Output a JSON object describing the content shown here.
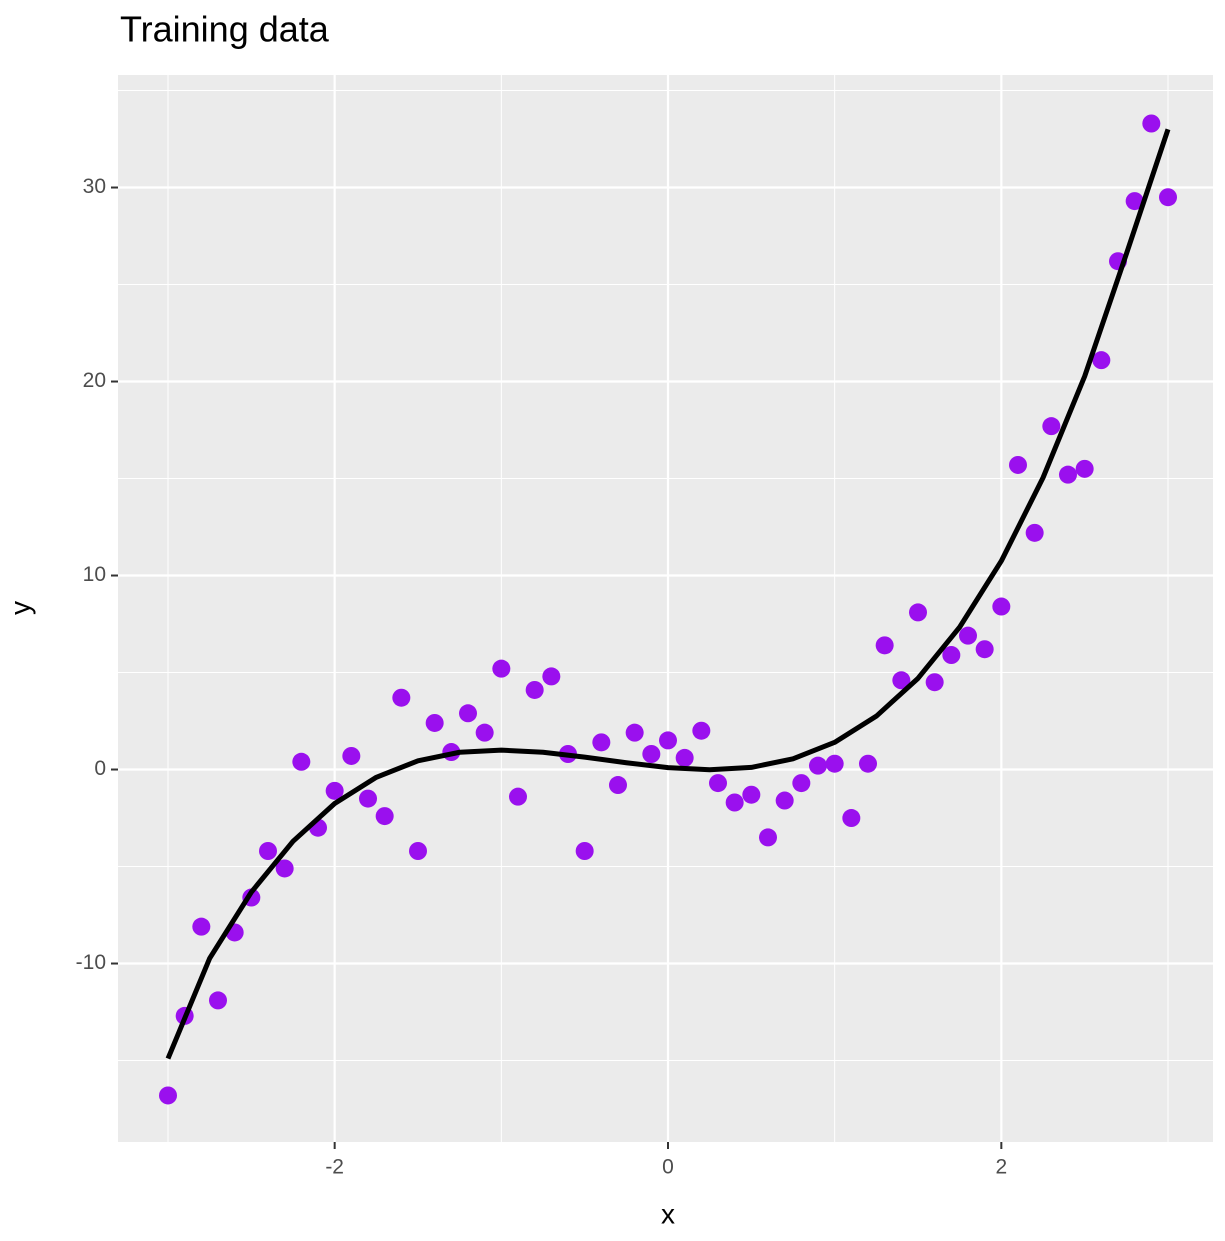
{
  "chart_data": {
    "type": "scatter",
    "title": "Training data",
    "xlabel": "x",
    "ylabel": "y",
    "xlim": [
      -3.3,
      3.27
    ],
    "ylim": [
      -19.2,
      35.8
    ],
    "xticks": [
      -2,
      0,
      2
    ],
    "yticks": [
      -10,
      0,
      10,
      20,
      30
    ],
    "x_minor_grid": [
      -3,
      -1,
      1,
      3
    ],
    "y_minor_grid": [
      -15,
      -5,
      5,
      15,
      25,
      35
    ],
    "grid": true,
    "points": {
      "color": "#9a10ee",
      "x": [
        -3,
        -2.9,
        -2.8,
        -2.7,
        -2.6,
        -2.5,
        -2.4,
        -2.3,
        -2.2,
        -2.1,
        -2,
        -1.9,
        -1.8,
        -1.7,
        -1.6,
        -1.5,
        -1.4,
        -1.3,
        -1.2,
        -1.1,
        -1,
        -0.9,
        -0.8,
        -0.7,
        -0.6,
        -0.5,
        -0.4,
        -0.3,
        -0.2,
        -0.1,
        0,
        0.1,
        0.2,
        0.3,
        0.4,
        0.5,
        0.6,
        0.7,
        0.8,
        0.9,
        1,
        1.1,
        1.2,
        1.3,
        1.4,
        1.5,
        1.6,
        1.7,
        1.8,
        1.9,
        2,
        2.1,
        2.2,
        2.3,
        2.4,
        2.5,
        2.6,
        2.7,
        2.8,
        2.9,
        3
      ],
      "y": [
        -16.8,
        -12.7,
        -8.1,
        -11.9,
        -8.4,
        -6.6,
        -4.2,
        -5.1,
        0.4,
        -3.0,
        -1.1,
        0.7,
        -1.5,
        -2.4,
        3.7,
        -4.2,
        2.4,
        0.9,
        2.9,
        1.9,
        5.2,
        -1.4,
        4.1,
        4.8,
        0.8,
        -4.2,
        1.4,
        -0.8,
        1.9,
        0.8,
        1.5,
        0.6,
        2.0,
        -0.7,
        -1.7,
        -1.3,
        -3.5,
        -1.6,
        -0.7,
        0.2,
        0.3,
        -2.5,
        0.3,
        6.4,
        4.6,
        8.1,
        4.5,
        5.9,
        6.9,
        6.2,
        8.4,
        15.7,
        12.2,
        17.7,
        15.2,
        15.5,
        21.1,
        26.2,
        29.3,
        33.3,
        29.5
      ]
    },
    "curve": {
      "color": "#000000",
      "x": [
        -3,
        -2.75,
        -2.5,
        -2.25,
        -2,
        -1.75,
        -1.5,
        -1.25,
        -1,
        -0.75,
        -0.5,
        -0.25,
        0,
        0.25,
        0.5,
        0.75,
        1,
        1.25,
        1.5,
        1.75,
        2,
        2.25,
        2.5,
        2.75,
        3
      ],
      "y": [
        -14.9,
        -9.73,
        -6.32,
        -3.7,
        -1.75,
        -0.4,
        0.45,
        0.89,
        1.0,
        0.89,
        0.64,
        0.35,
        0.1,
        -0.01,
        0.11,
        0.55,
        1.4,
        2.75,
        4.7,
        7.34,
        10.75,
        15.04,
        20.27,
        26.57,
        33.0
      ]
    }
  }
}
